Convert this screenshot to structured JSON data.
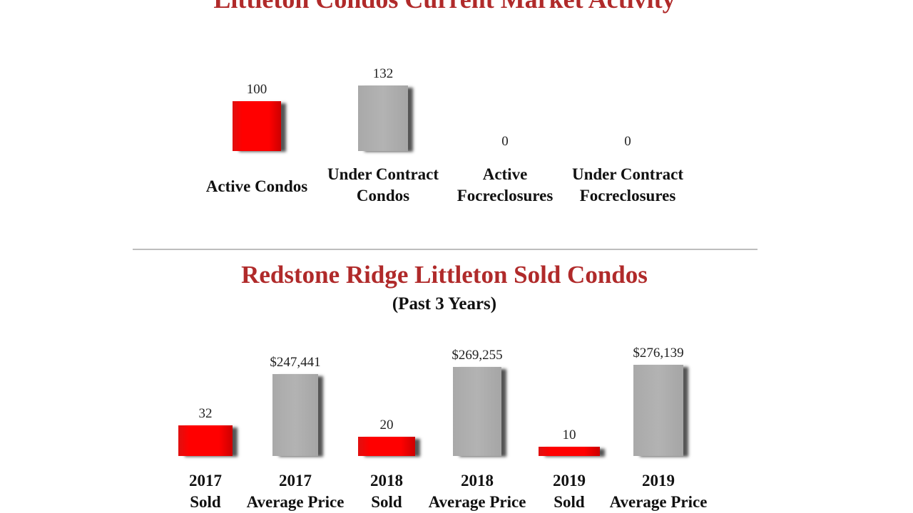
{
  "chart_data": [
    {
      "type": "bar",
      "title": "Littleton Condos Current Market Activity",
      "categories": [
        "Active Condos",
        "Under Contract Condos",
        "Active Focreclosures",
        "Under Contract Focreclosures"
      ],
      "category_lines": [
        [
          "Active Condos"
        ],
        [
          "Under Contract",
          "Condos"
        ],
        [
          "Active",
          "Focreclosures"
        ],
        [
          "Under Contract",
          "Focreclosures"
        ]
      ],
      "values": [
        100,
        132,
        0,
        0
      ],
      "value_labels": [
        "100",
        "132",
        "0",
        "0"
      ],
      "colors": [
        "#ff0000",
        "#b0b0b0",
        "#ff0000",
        "#b0b0b0"
      ]
    },
    {
      "type": "bar",
      "title": "Redstone Ridge Littleton Sold Condos",
      "subtitle": "(Past 3 Years)",
      "categories": [
        "2017 Sold",
        "2017 Average Price",
        "2018 Sold",
        "2018 Average Price",
        "2019 Sold",
        "2019 Average Price"
      ],
      "category_lines": [
        [
          "2017",
          "Sold"
        ],
        [
          "2017",
          "Average Price"
        ],
        [
          "2018",
          "Sold"
        ],
        [
          "2018",
          "Average Price"
        ],
        [
          "2019",
          "Sold"
        ],
        [
          "2019",
          "Average Price"
        ]
      ],
      "values": [
        32,
        247441,
        20,
        269255,
        10,
        276139
      ],
      "value_labels": [
        "32",
        "$247,441",
        "20",
        "$269,255",
        "10",
        "$276,139"
      ],
      "colors": [
        "#ff0000",
        "#b0b0b0",
        "#ff0000",
        "#b0b0b0",
        "#ff0000",
        "#b0b0b0"
      ]
    }
  ]
}
